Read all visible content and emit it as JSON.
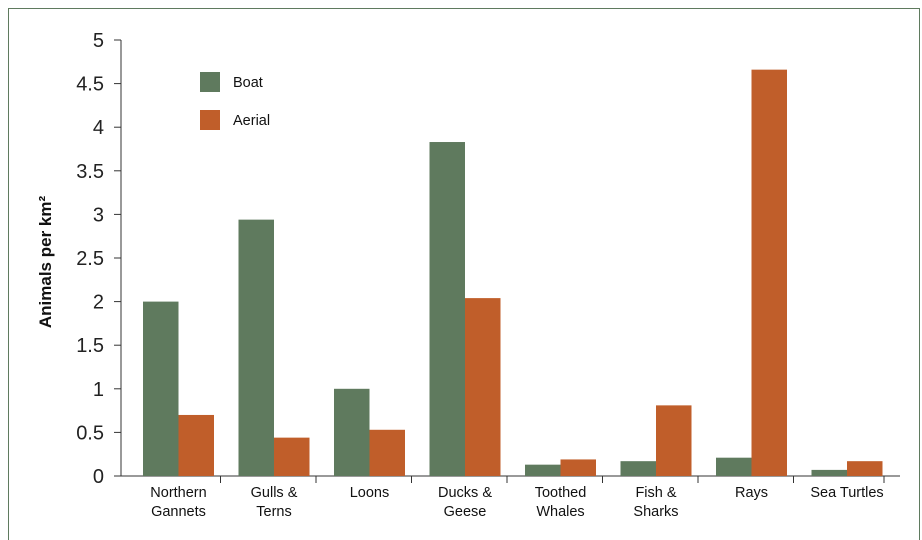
{
  "chart_data": {
    "type": "bar",
    "categories": [
      [
        "Northern",
        "Gannets"
      ],
      [
        "Gulls &",
        "Terns"
      ],
      [
        "Loons"
      ],
      [
        "Ducks &",
        "Geese"
      ],
      [
        "Toothed",
        "Whales"
      ],
      [
        "Fish &",
        "Sharks"
      ],
      [
        "Rays"
      ],
      [
        "Sea Turtles"
      ]
    ],
    "series": [
      {
        "name": "Boat",
        "color": "#5f7a5e",
        "values": [
          2.0,
          2.94,
          1.0,
          3.83,
          0.13,
          0.17,
          0.21,
          0.07
        ]
      },
      {
        "name": "Aerial",
        "color": "#c05e2a",
        "values": [
          0.7,
          0.44,
          0.53,
          2.04,
          0.19,
          0.81,
          4.66,
          0.17
        ]
      }
    ],
    "ylabel": "Animals per km²",
    "ylim": [
      0,
      5
    ],
    "yticks": [
      0,
      0.5,
      1,
      1.5,
      2,
      2.5,
      3,
      3.5,
      4,
      4.5,
      5
    ],
    "ytick_labels": [
      "0",
      "0.5",
      "1",
      "1.5",
      "2",
      "2.5",
      "3",
      "3.5",
      "4",
      "4.5",
      "5"
    ],
    "grid": false,
    "legend_position": "top-left"
  }
}
